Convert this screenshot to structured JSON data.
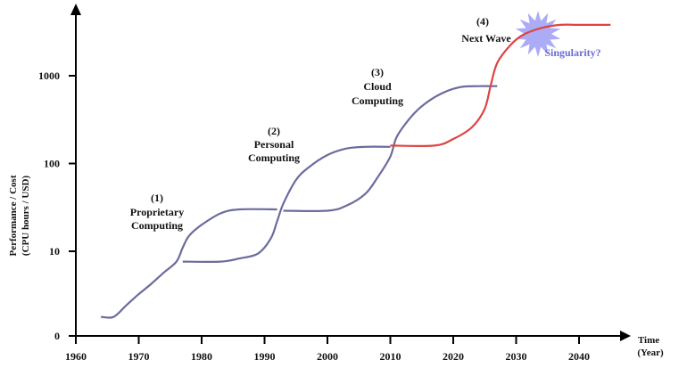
{
  "chart_data": {
    "type": "line",
    "xlabel": "Time",
    "xlabel_unit": "(Year)",
    "ylabel_line1": "Performance / Cost",
    "ylabel_line2": "(CPU hours / USD)",
    "x_ticks": [
      1960,
      1970,
      1980,
      1990,
      2000,
      2010,
      2020,
      2030,
      2040
    ],
    "y_ticks": [
      0,
      10,
      100,
      1000
    ],
    "y_scale": "log",
    "xlim": [
      1960,
      2046
    ],
    "grid": false,
    "series": [
      {
        "color": "#6b6b9e",
        "points": [
          [
            1964,
            0.5
          ],
          [
            1966,
            0.5
          ],
          [
            1968,
            0.8
          ],
          [
            1970,
            1.2
          ],
          [
            1972,
            2.0
          ],
          [
            1974,
            3.5
          ],
          [
            1976,
            6
          ],
          [
            1977,
            11
          ],
          [
            1978,
            15
          ],
          [
            1980,
            20
          ],
          [
            1983,
            27
          ],
          [
            1986,
            30
          ],
          [
            1992,
            30
          ]
        ]
      },
      {
        "color": "#6b6b9e",
        "points": [
          [
            1977,
            6
          ],
          [
            1983,
            6
          ],
          [
            1986,
            7
          ],
          [
            1989,
            9
          ],
          [
            1991,
            14
          ],
          [
            1992,
            22
          ],
          [
            1993,
            35
          ],
          [
            1995,
            65
          ],
          [
            1997,
            90
          ],
          [
            2000,
            125
          ],
          [
            2003,
            148
          ],
          [
            2006,
            155
          ],
          [
            2010,
            155
          ]
        ]
      },
      {
        "color": "#6b6b9e",
        "points": [
          [
            1993,
            29
          ],
          [
            2000,
            29
          ],
          [
            2003,
            33
          ],
          [
            2006,
            45
          ],
          [
            2008,
            70
          ],
          [
            2010,
            120
          ],
          [
            2011,
            200
          ],
          [
            2013,
            320
          ],
          [
            2015,
            450
          ],
          [
            2018,
            620
          ],
          [
            2021,
            740
          ],
          [
            2024,
            760
          ],
          [
            2027,
            760
          ]
        ]
      },
      {
        "color": "#dd4444",
        "points": [
          [
            2010,
            160
          ],
          [
            2017,
            160
          ],
          [
            2020,
            190
          ],
          [
            2023,
            260
          ],
          [
            2025,
            420
          ],
          [
            2026,
            800
          ],
          [
            2027,
            1400
          ],
          [
            2029,
            2200
          ],
          [
            2031,
            2900
          ],
          [
            2034,
            3500
          ],
          [
            2037,
            3800
          ],
          [
            2040,
            3800
          ],
          [
            2045,
            3800
          ]
        ]
      }
    ],
    "annotations": [
      {
        "num": "(1)",
        "lines": [
          "Proprietary",
          "Computing"
        ],
        "color": "#111111"
      },
      {
        "num": "(2)",
        "lines": [
          "Personal",
          "Computing"
        ],
        "color": "#111111"
      },
      {
        "num": "(3)",
        "lines": [
          "Cloud",
          "Computing"
        ],
        "color": "#111111"
      },
      {
        "num": "(4)",
        "lines": [
          "Next Wave"
        ],
        "color": "#dd4444"
      }
    ],
    "singularity_label": "Singularity?",
    "singularity_color": "#6b6bd6",
    "starburst_color": "#9e9ef5"
  }
}
